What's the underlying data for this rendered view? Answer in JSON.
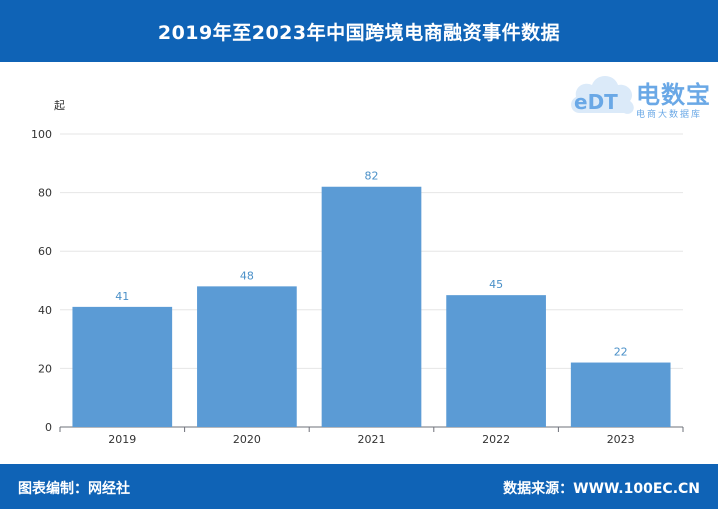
{
  "header": {
    "title": "2019年至2023年中国跨境电商融资事件数据"
  },
  "footer": {
    "left": "图表编制：网经社",
    "right": "数据来源：WWW.100EC.CN"
  },
  "logo": {
    "text": "eDT",
    "brand": "电数宝",
    "sub": "电商大数据库"
  },
  "colors": {
    "header": "#0f63b6",
    "bar": "#5b9bd5",
    "label": "#4a90c8"
  },
  "chart_data": {
    "type": "bar",
    "title": "2019年至2023年中国跨境电商融资事件数据",
    "ylabel": "起",
    "xlabel": "",
    "categories": [
      "2019",
      "2020",
      "2021",
      "2022",
      "2023"
    ],
    "values": [
      41,
      48,
      82,
      45,
      22
    ],
    "ylim": [
      0,
      100
    ],
    "yticks": [
      0,
      20,
      40,
      60,
      80,
      100
    ],
    "grid": true
  }
}
